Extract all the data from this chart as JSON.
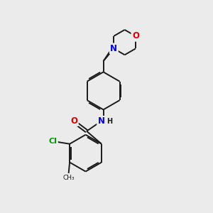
{
  "background_color": "#ebebeb",
  "bond_color": "#1a1a1a",
  "atom_colors": {
    "N": "#0000e0",
    "O": "#e00000",
    "Cl": "#009900",
    "C": "#1a1a1a"
  },
  "font_size_atom": 8.5,
  "fig_size": [
    3.0,
    3.0
  ],
  "dpi": 100
}
